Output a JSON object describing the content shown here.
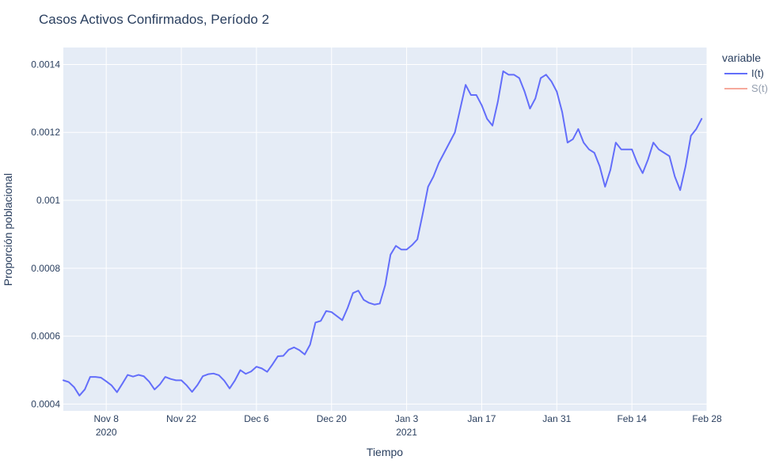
{
  "chart_data": {
    "type": "line",
    "title": "Casos Activos Confirmados, Período 2",
    "xlabel": "Tiempo",
    "ylabel": "Proporción poblacional",
    "xlim": [
      "2020-10-31",
      "2021-02-28"
    ],
    "ylim": [
      0.00038,
      0.00145
    ],
    "x_ticks": [
      {
        "date": "2020-11-08",
        "label": "Nov 8",
        "sublabel": "2020"
      },
      {
        "date": "2020-11-22",
        "label": "Nov 22",
        "sublabel": ""
      },
      {
        "date": "2020-12-06",
        "label": "Dec 6",
        "sublabel": ""
      },
      {
        "date": "2020-12-20",
        "label": "Dec 20",
        "sublabel": ""
      },
      {
        "date": "2021-01-03",
        "label": "Jan 3",
        "sublabel": "2021"
      },
      {
        "date": "2021-01-17",
        "label": "Jan 17",
        "sublabel": ""
      },
      {
        "date": "2021-01-31",
        "label": "Jan 31",
        "sublabel": ""
      },
      {
        "date": "2021-02-14",
        "label": "Feb 14",
        "sublabel": ""
      },
      {
        "date": "2021-02-28",
        "label": "Feb 28",
        "sublabel": ""
      }
    ],
    "y_ticks": [
      {
        "value": 0.0004,
        "label": "0.0004"
      },
      {
        "value": 0.0006,
        "label": "0.0006"
      },
      {
        "value": 0.0008,
        "label": "0.0008"
      },
      {
        "value": 0.001,
        "label": "0.001"
      },
      {
        "value": 0.0012,
        "label": "0.0012"
      },
      {
        "value": 0.0014,
        "label": "0.0014"
      }
    ],
    "grid": true,
    "legend": {
      "title": "variable",
      "placement": "top-right"
    },
    "series": [
      {
        "name": "I(t)",
        "color": "#636efa",
        "visible": true,
        "x_start": "2020-10-31",
        "x_step_days": 1,
        "values": [
          0.00047,
          0.000465,
          0.00045,
          0.000425,
          0.000443,
          0.00048,
          0.00048,
          0.000478,
          0.000467,
          0.000455,
          0.000435,
          0.00046,
          0.000486,
          0.000481,
          0.000486,
          0.000482,
          0.000466,
          0.000443,
          0.000458,
          0.00048,
          0.000474,
          0.00047,
          0.00047,
          0.000455,
          0.000436,
          0.000456,
          0.000482,
          0.000488,
          0.00049,
          0.000485,
          0.000469,
          0.000446,
          0.00047,
          0.0005,
          0.000489,
          0.000496,
          0.00051,
          0.000505,
          0.000495,
          0.000517,
          0.000541,
          0.000542,
          0.00056,
          0.000567,
          0.000559,
          0.000546,
          0.000575,
          0.00064,
          0.000645,
          0.000674,
          0.000671,
          0.000659,
          0.000647,
          0.000683,
          0.000727,
          0.000734,
          0.000707,
          0.000698,
          0.000693,
          0.000696,
          0.00075,
          0.00084,
          0.000866,
          0.000855,
          0.000855,
          0.000868,
          0.000885,
          0.00096,
          0.00104,
          0.00107,
          0.00111,
          0.00114,
          0.00117,
          0.0012,
          0.00127,
          0.00134,
          0.00131,
          0.00131,
          0.00128,
          0.00124,
          0.00122,
          0.00129,
          0.00138,
          0.00137,
          0.00137,
          0.00136,
          0.00132,
          0.00127,
          0.0013,
          0.00136,
          0.00137,
          0.00135,
          0.00132,
          0.00126,
          0.00117,
          0.00118,
          0.00121,
          0.00117,
          0.00115,
          0.00114,
          0.0011,
          0.00104,
          0.00109,
          0.00117,
          0.00115,
          0.00115,
          0.00115,
          0.00111,
          0.00108,
          0.00112,
          0.00117,
          0.00115,
          0.00114,
          0.00113,
          0.00107,
          0.00103,
          0.0011,
          0.00119,
          0.00121,
          0.00124
        ]
      },
      {
        "name": "S(t)",
        "color": "#ef553b",
        "visible": false,
        "values": []
      }
    ]
  }
}
